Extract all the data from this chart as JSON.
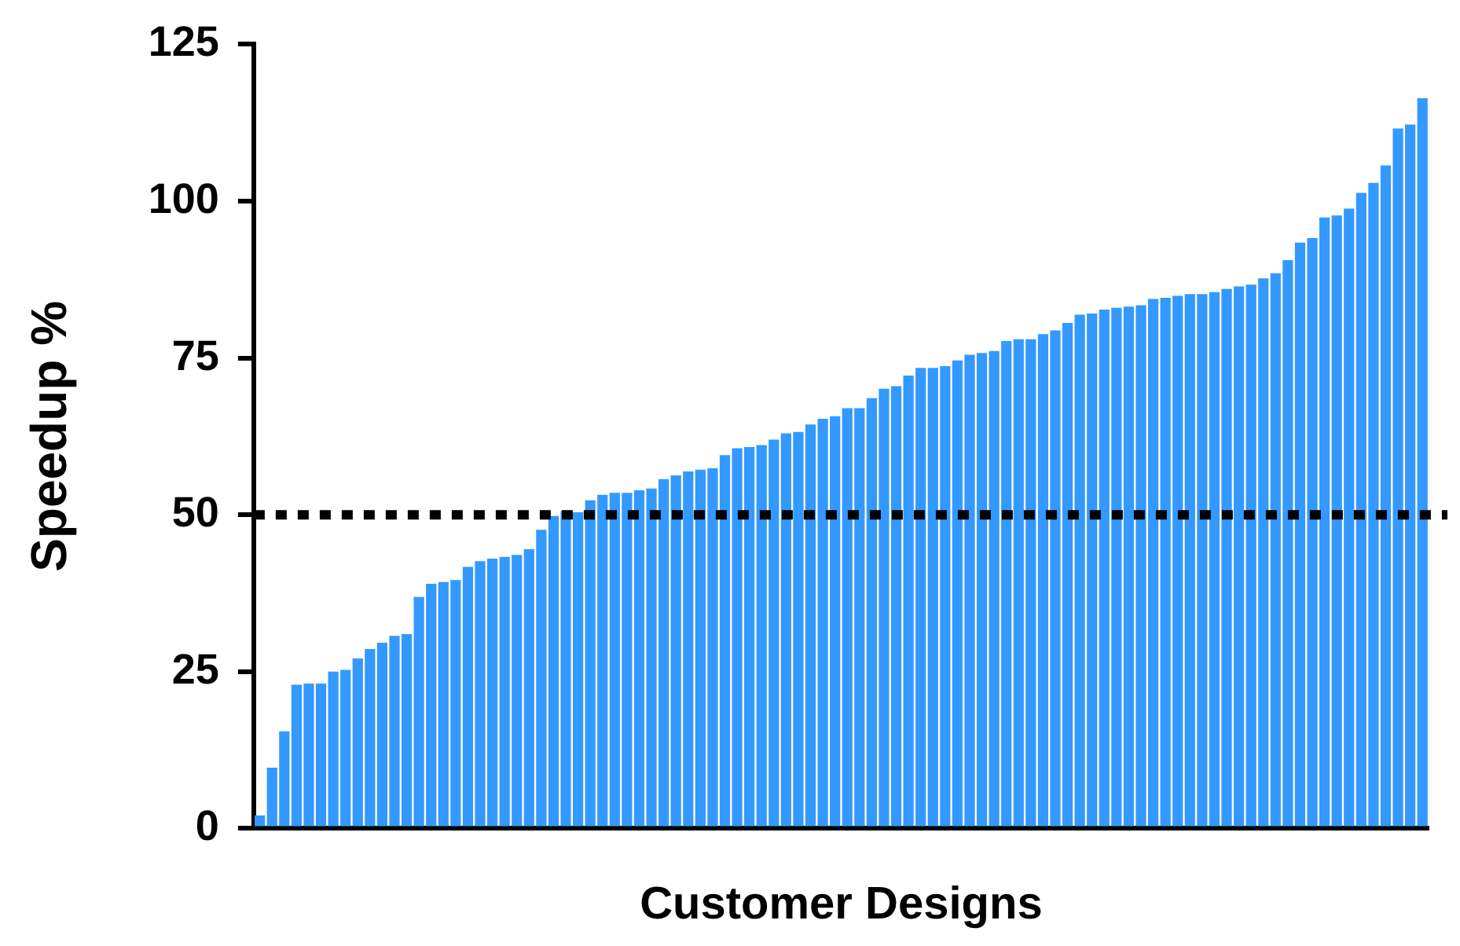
{
  "chart_data": {
    "type": "bar",
    "xlabel": "Customer Designs",
    "ylabel": "Speedup %",
    "categories": [
      null,
      null,
      null,
      null,
      null,
      null,
      null,
      null,
      null,
      null,
      null,
      null,
      null,
      null,
      null,
      null,
      null,
      null,
      null,
      null,
      null,
      null,
      null,
      null,
      null,
      null,
      null,
      null,
      null,
      null,
      null,
      null,
      null,
      null,
      null,
      null,
      null,
      null,
      null,
      null,
      null,
      null,
      null,
      null,
      null,
      null,
      null,
      null,
      null,
      null,
      null,
      null,
      null,
      null,
      null,
      null,
      null,
      null,
      null,
      null,
      null,
      null,
      null,
      null,
      null,
      null,
      null,
      null,
      null,
      null,
      null,
      null,
      null,
      null,
      null,
      null,
      null,
      null,
      null,
      null,
      null,
      null,
      null,
      null,
      null,
      null,
      null,
      null,
      null,
      null,
      null,
      null,
      null,
      null,
      null,
      null
    ],
    "values": [
      2.1,
      9.7,
      15.5,
      22.9,
      23.1,
      23.1,
      25,
      25.3,
      27.1,
      28.6,
      29.6,
      30.7,
      31,
      36.9,
      39,
      39.3,
      39.6,
      41.7,
      42.6,
      43,
      43.3,
      43.6,
      44.5,
      47.6,
      49.8,
      50.6,
      50.4,
      52.3,
      53.2,
      53.5,
      53.5,
      53.9,
      54.2,
      55.7,
      56.3,
      56.9,
      57.2,
      57.4,
      59.5,
      60.6,
      60.8,
      61.1,
      62,
      63,
      63.2,
      64.4,
      65.3,
      65.7,
      67,
      67,
      68.6,
      70.1,
      70.5,
      72.2,
      73.4,
      73.4,
      73.7,
      74.6,
      75.5,
      75.8,
      76.1,
      77.7,
      78,
      78,
      78.8,
      79.4,
      80.6,
      81.9,
      82.1,
      82.7,
      83,
      83.2,
      83.4,
      84.4,
      84.6,
      84.9,
      85.2,
      85.2,
      85.5,
      86,
      86.4,
      86.7,
      87.7,
      88.5,
      90.6,
      93.4,
      94.1,
      97.4,
      97.7,
      98.8,
      101.3,
      102.9,
      105.7,
      111.6,
      112.2,
      116.4
    ],
    "color": "#3399ff",
    "ylim": [
      0,
      125
    ],
    "yticks": [
      0,
      25,
      50,
      75,
      100,
      125
    ],
    "tick_labels": "y",
    "ref_lines": [
      {
        "axis": "y",
        "value": 50,
        "color": "#000000",
        "line_style": "dotted"
      }
    ],
    "legend": false
  }
}
